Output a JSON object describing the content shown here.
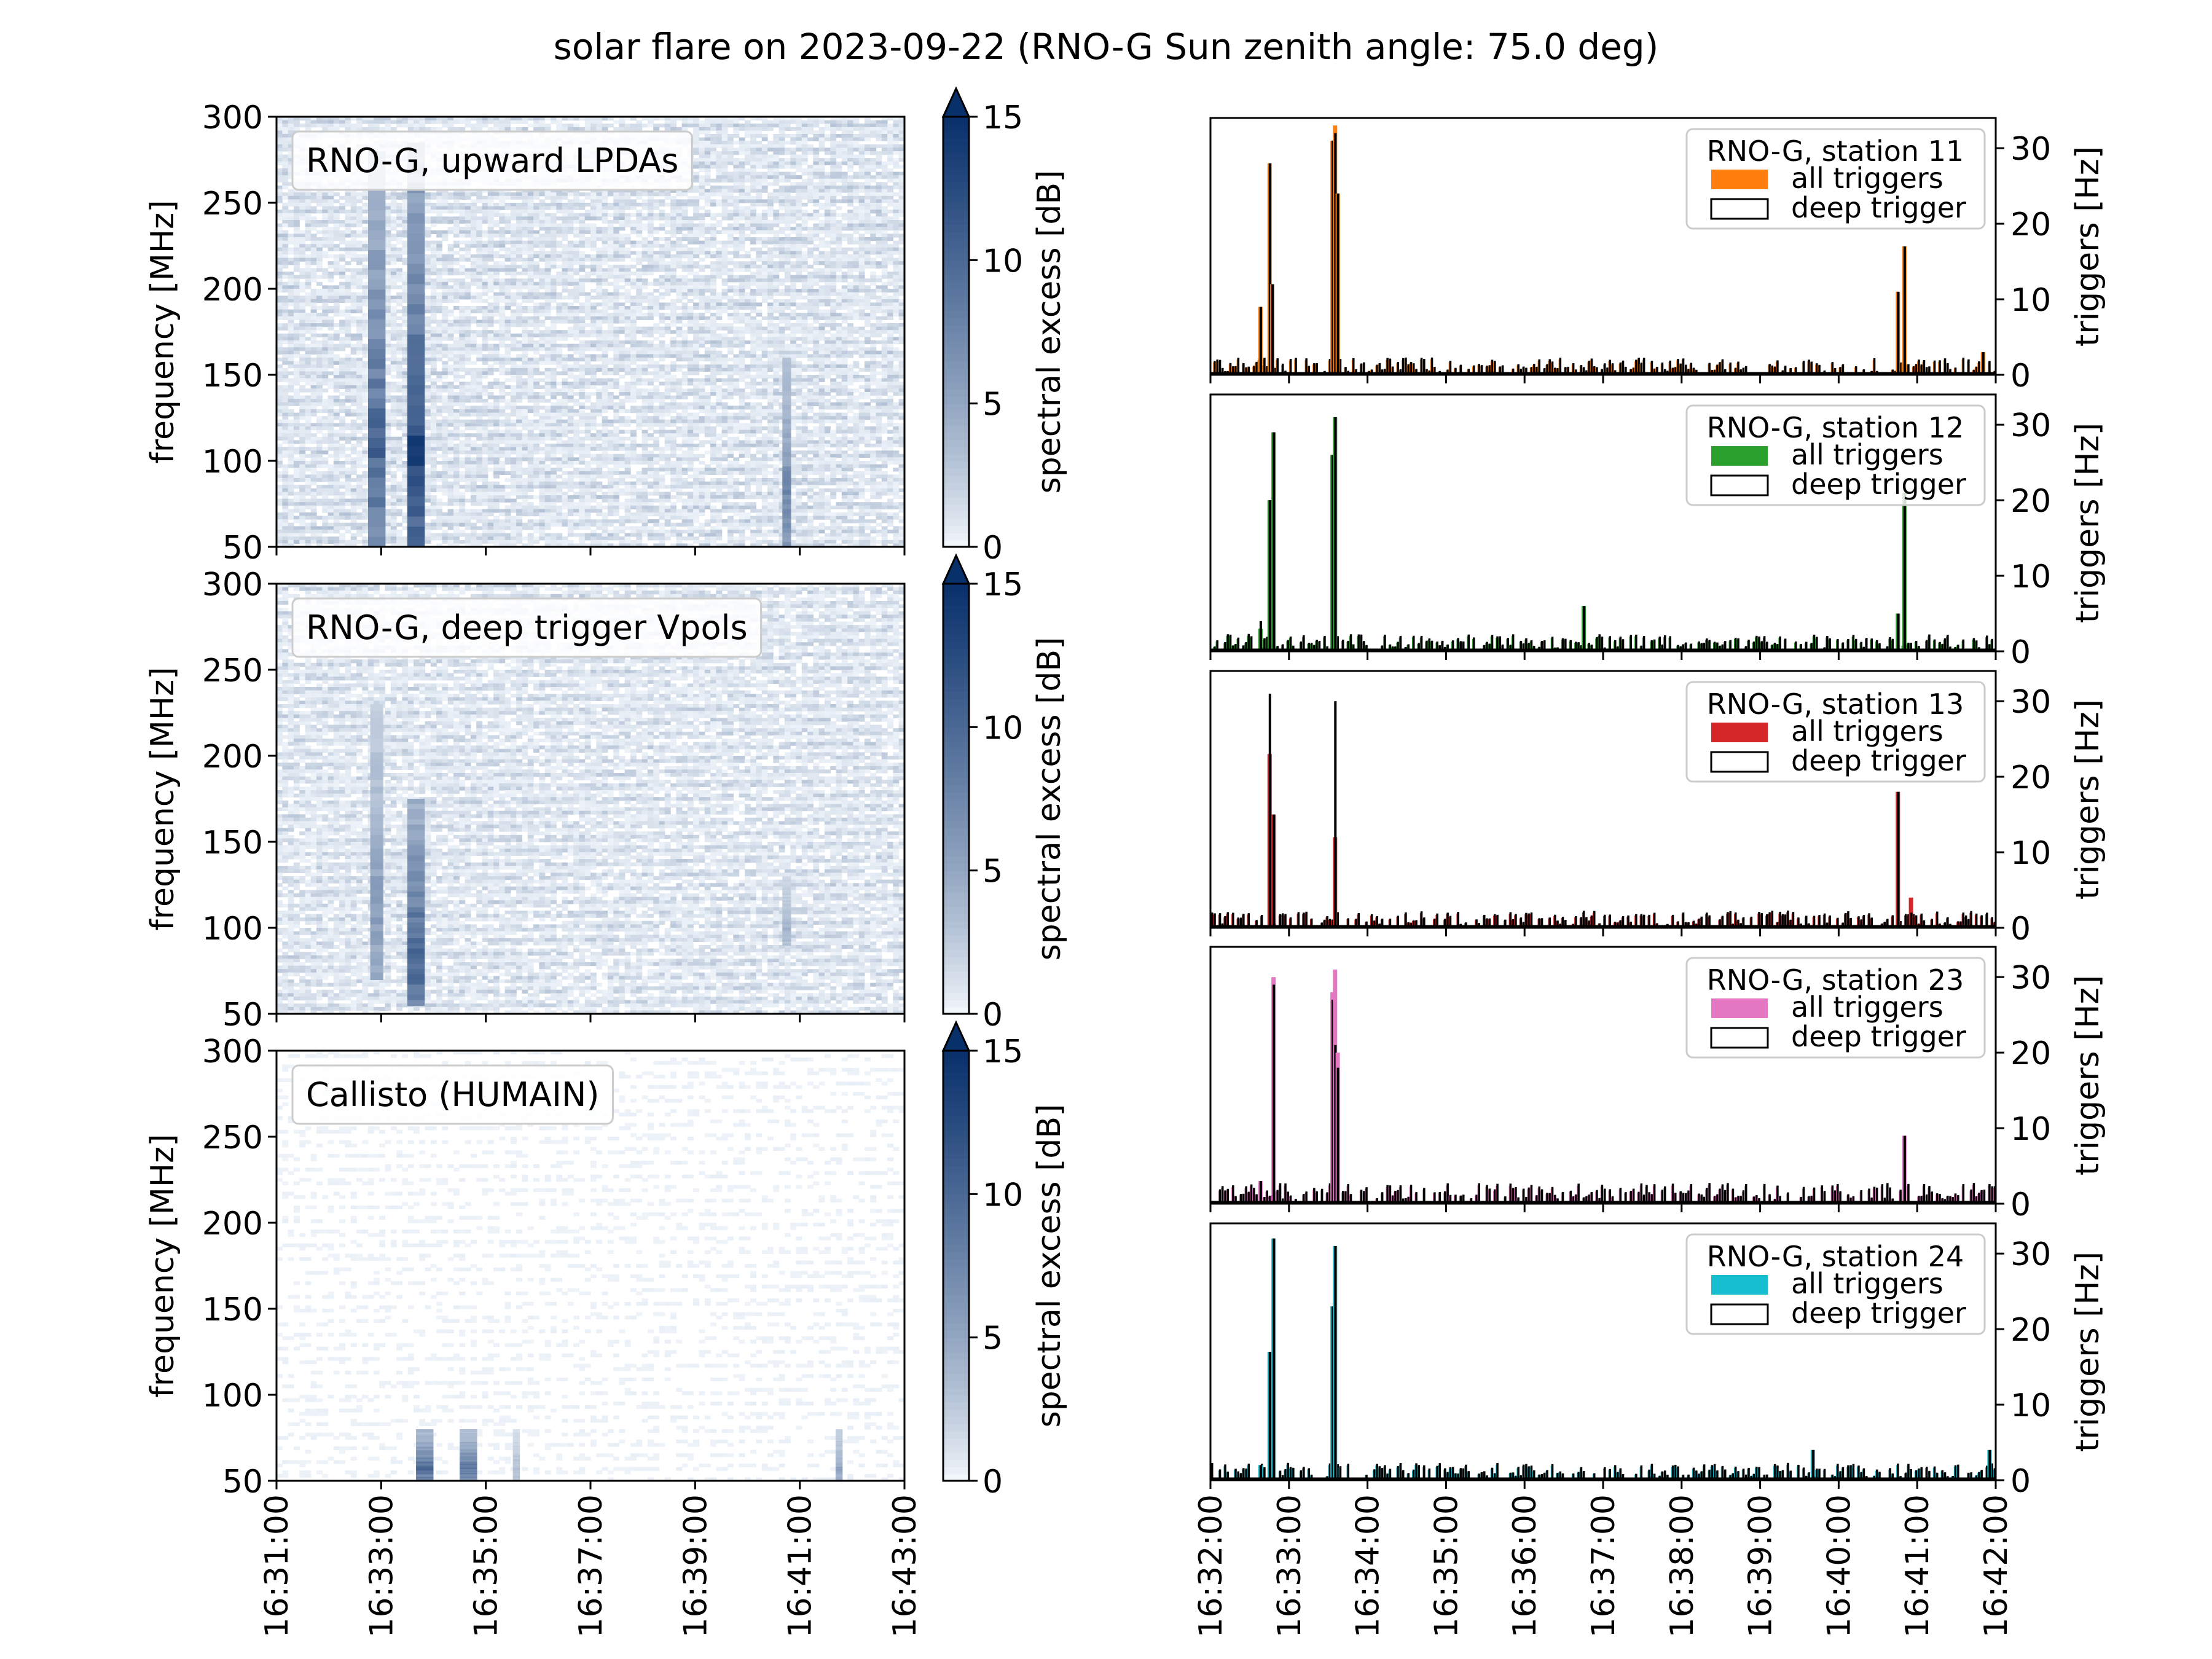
{
  "figure": {
    "title": "solar flare on 2023-09-22 (RNO-G Sun zenith angle: 75.0 deg)"
  },
  "colors": {
    "cmap_low": "#f7fbff",
    "cmap_high": "#08306b",
    "station_11": "#ff7f0e",
    "station_12": "#2ca02c",
    "station_13": "#d62728",
    "station_23": "#e377c2",
    "station_24": "#17becf"
  },
  "chart_data": [
    {
      "type": "heatmap",
      "panel": "RNO-G, upward LPDAs",
      "ylabel": "frequency [MHz]",
      "colorbar_label": "spectral excess [dB]",
      "colorbar_range": [
        0,
        15
      ],
      "colorbar_extend": "max",
      "colorbar_ticks": [
        "0",
        "5",
        "10",
        "15"
      ],
      "ylim": [
        50,
        300
      ],
      "yticks": [
        "50",
        "100",
        "150",
        "200",
        "250",
        "300"
      ],
      "xlim": [
        "16:31:00",
        "16:43:00"
      ],
      "noise_level_db": 2.0,
      "bursts": [
        {
          "time": "16:32:55",
          "duration_s": 20,
          "freq_range": [
            50,
            280
          ],
          "peak_db": 12
        },
        {
          "time": "16:33:40",
          "duration_s": 20,
          "freq_range": [
            50,
            285
          ],
          "peak_db": 15
        },
        {
          "time": "16:40:45",
          "duration_s": 10,
          "freq_range": [
            50,
            160
          ],
          "peak_db": 9
        }
      ]
    },
    {
      "type": "heatmap",
      "panel": "RNO-G, deep trigger Vpols",
      "ylabel": "frequency [MHz]",
      "colorbar_label": "spectral excess [dB]",
      "colorbar_range": [
        0,
        15
      ],
      "colorbar_extend": "max",
      "colorbar_ticks": [
        "0",
        "5",
        "10",
        "15"
      ],
      "ylim": [
        50,
        300
      ],
      "yticks": [
        "50",
        "100",
        "150",
        "200",
        "250",
        "300"
      ],
      "xlim": [
        "16:31:00",
        "16:43:00"
      ],
      "noise_level_db": 1.8,
      "bursts": [
        {
          "time": "16:32:55",
          "duration_s": 15,
          "freq_range": [
            70,
            230
          ],
          "peak_db": 7
        },
        {
          "time": "16:33:40",
          "duration_s": 20,
          "freq_range": [
            55,
            175
          ],
          "peak_db": 13
        },
        {
          "time": "16:40:45",
          "duration_s": 10,
          "freq_range": [
            90,
            130
          ],
          "peak_db": 5
        }
      ]
    },
    {
      "type": "heatmap",
      "panel": "Callisto (HUMAIN)",
      "ylabel": "frequency [MHz]",
      "colorbar_label": "spectral excess [dB]",
      "colorbar_range": [
        0,
        15
      ],
      "colorbar_extend": "max",
      "colorbar_ticks": [
        "0",
        "5",
        "10",
        "15"
      ],
      "ylim": [
        50,
        300
      ],
      "yticks": [
        "50",
        "100",
        "150",
        "200",
        "250",
        "300"
      ],
      "xlim": [
        "16:31:00",
        "16:43:00"
      ],
      "xticks": [
        "16:31:00",
        "16:33:00",
        "16:35:00",
        "16:37:00",
        "16:39:00",
        "16:41:00",
        "16:43:00"
      ],
      "noise_level_db": 0.3,
      "bursts": [
        {
          "time": "16:33:50",
          "duration_s": 20,
          "freq_range": [
            50,
            80
          ],
          "peak_db": 11
        },
        {
          "time": "16:34:40",
          "duration_s": 20,
          "freq_range": [
            50,
            80
          ],
          "peak_db": 10
        },
        {
          "time": "16:35:35",
          "duration_s": 8,
          "freq_range": [
            50,
            80
          ],
          "peak_db": 4
        },
        {
          "time": "16:41:45",
          "duration_s": 8,
          "freq_range": [
            50,
            80
          ],
          "peak_db": 6
        }
      ]
    },
    {
      "type": "bar",
      "legend_title": "RNO-G, station 11",
      "series": [
        {
          "name": "all triggers"
        },
        {
          "name": "deep trigger"
        }
      ],
      "ylabel": "triggers [Hz]",
      "ylim": [
        0,
        34
      ],
      "yticks": [
        "0",
        "10",
        "20",
        "30"
      ],
      "xlim": [
        "16:32:00",
        "16:42:00"
      ],
      "baseline_hz": 1.0,
      "peaks": [
        {
          "time": "16:32:38",
          "all": 9,
          "deep": 9
        },
        {
          "time": "16:32:45",
          "all": 28,
          "deep": 28
        },
        {
          "time": "16:32:47",
          "all": 12,
          "deep": 12
        },
        {
          "time": "16:33:33",
          "all": 31,
          "deep": 31
        },
        {
          "time": "16:33:35",
          "all": 33,
          "deep": 32
        },
        {
          "time": "16:33:37",
          "all": 24,
          "deep": 24
        },
        {
          "time": "16:40:45",
          "all": 11,
          "deep": 11
        },
        {
          "time": "16:40:50",
          "all": 17,
          "deep": 17
        },
        {
          "time": "16:41:50",
          "all": 3,
          "deep": 3
        }
      ]
    },
    {
      "type": "bar",
      "legend_title": "RNO-G, station 12",
      "series": [
        {
          "name": "all triggers"
        },
        {
          "name": "deep trigger"
        }
      ],
      "ylabel": "triggers [Hz]",
      "ylim": [
        0,
        34
      ],
      "yticks": [
        "0",
        "10",
        "20",
        "30"
      ],
      "xlim": [
        "16:32:00",
        "16:42:00"
      ],
      "baseline_hz": 1.0,
      "peaks": [
        {
          "time": "16:32:38",
          "all": 3,
          "deep": 4
        },
        {
          "time": "16:32:45",
          "all": 20,
          "deep": 20
        },
        {
          "time": "16:32:48",
          "all": 29,
          "deep": 29
        },
        {
          "time": "16:33:33",
          "all": 26,
          "deep": 26
        },
        {
          "time": "16:33:35",
          "all": 31,
          "deep": 31
        },
        {
          "time": "16:36:45",
          "all": 6,
          "deep": 6
        },
        {
          "time": "16:40:45",
          "all": 5,
          "deep": 5
        },
        {
          "time": "16:40:50",
          "all": 21,
          "deep": 21
        }
      ]
    },
    {
      "type": "bar",
      "legend_title": "RNO-G, station 13",
      "series": [
        {
          "name": "all triggers"
        },
        {
          "name": "deep trigger"
        }
      ],
      "ylabel": "triggers [Hz]",
      "ylim": [
        0,
        34
      ],
      "yticks": [
        "0",
        "10",
        "20",
        "30"
      ],
      "xlim": [
        "16:32:00",
        "16:42:00"
      ],
      "baseline_hz": 1.0,
      "peaks": [
        {
          "time": "16:32:45",
          "all": 23,
          "deep": 31
        },
        {
          "time": "16:32:48",
          "all": 15,
          "deep": 15
        },
        {
          "time": "16:33:35",
          "all": 12,
          "deep": 30
        },
        {
          "time": "16:40:45",
          "all": 18,
          "deep": 18
        },
        {
          "time": "16:40:55",
          "all": 4,
          "deep": 2
        }
      ]
    },
    {
      "type": "bar",
      "legend_title": "RNO-G, station 23",
      "series": [
        {
          "name": "all triggers"
        },
        {
          "name": "deep trigger"
        }
      ],
      "ylabel": "triggers [Hz]",
      "ylim": [
        0,
        34
      ],
      "yticks": [
        "0",
        "10",
        "20",
        "30"
      ],
      "xlim": [
        "16:32:00",
        "16:42:00"
      ],
      "baseline_hz": 1.2,
      "peaks": [
        {
          "time": "16:32:38",
          "all": 3,
          "deep": 3
        },
        {
          "time": "16:32:48",
          "all": 30,
          "deep": 29
        },
        {
          "time": "16:33:33",
          "all": 28,
          "deep": 27
        },
        {
          "time": "16:33:35",
          "all": 31,
          "deep": 21
        },
        {
          "time": "16:33:37",
          "all": 20,
          "deep": 18
        },
        {
          "time": "16:40:50",
          "all": 9,
          "deep": 9
        }
      ]
    },
    {
      "type": "bar",
      "legend_title": "RNO-G, station 24",
      "series": [
        {
          "name": "all triggers"
        },
        {
          "name": "deep trigger"
        }
      ],
      "ylabel": "triggers [Hz]",
      "ylim": [
        0,
        34
      ],
      "yticks": [
        "0",
        "10",
        "20",
        "30"
      ],
      "xlim": [
        "16:32:00",
        "16:42:00"
      ],
      "xticks": [
        "16:32:00",
        "16:33:00",
        "16:34:00",
        "16:35:00",
        "16:36:00",
        "16:37:00",
        "16:38:00",
        "16:39:00",
        "16:40:00",
        "16:41:00",
        "16:42:00"
      ],
      "baseline_hz": 1.0,
      "peaks": [
        {
          "time": "16:32:38",
          "all": 2,
          "deep": 2
        },
        {
          "time": "16:32:45",
          "all": 17,
          "deep": 17
        },
        {
          "time": "16:32:48",
          "all": 32,
          "deep": 32
        },
        {
          "time": "16:33:33",
          "all": 23,
          "deep": 23
        },
        {
          "time": "16:33:35",
          "all": 31,
          "deep": 31
        },
        {
          "time": "16:39:40",
          "all": 4,
          "deep": 4
        },
        {
          "time": "16:41:55",
          "all": 4,
          "deep": 4
        }
      ]
    }
  ]
}
